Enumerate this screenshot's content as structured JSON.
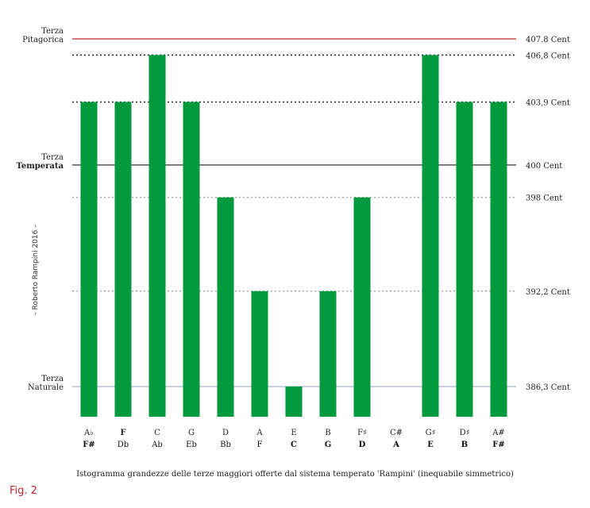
{
  "chart_data": {
    "type": "bar",
    "title": "",
    "xlabel": "",
    "ylabel": "",
    "ylim": [
      384,
      408.8
    ],
    "bar_color": "#009a3e",
    "top_tick_labels": [
      "A♭",
      "F",
      "C",
      "G",
      "D",
      "A",
      "E",
      "B",
      "F♯",
      "C#",
      "G♯",
      "D♯",
      "A#"
    ],
    "bottom_tick_labels": [
      "F#",
      "Db",
      "Ab",
      "Eb",
      "Bb",
      "F",
      "C",
      "G",
      "D",
      "A",
      "E",
      "B",
      "F#"
    ],
    "bold_top": [
      false,
      true,
      false,
      false,
      false,
      false,
      false,
      false,
      false,
      false,
      false,
      false,
      false
    ],
    "bold_bottom": [
      true,
      false,
      false,
      false,
      false,
      false,
      true,
      true,
      true,
      true,
      true,
      true,
      true
    ],
    "values": [
      403.9,
      403.9,
      406.8,
      403.9,
      398,
      392.2,
      386.3,
      392.2,
      398,
      384.1,
      406.8,
      403.9,
      403.9
    ],
    "reference_lines": [
      {
        "value": 407.8,
        "label": "407.8 Cent",
        "style": "solid",
        "color": "#c0262c",
        "left_label": [
          "Terza",
          "Pitagorica"
        ],
        "bold": false
      },
      {
        "value": 406.8,
        "label": "406,8 Cent",
        "style": "dotted",
        "color": "#222222",
        "left_label": [],
        "bold": false
      },
      {
        "value": 403.9,
        "label": "403,9 Cent",
        "style": "dotted",
        "color": "#222222",
        "left_label": [],
        "bold": false
      },
      {
        "value": 400,
        "label": "400 Cent",
        "style": "solid",
        "color": "#333333",
        "left_label": [
          "Terza",
          "Temperata"
        ],
        "bold": true
      },
      {
        "value": 398,
        "label": "398 Cent",
        "style": "dotted",
        "color": "#aaaaaa",
        "left_label": [],
        "bold": false
      },
      {
        "value": 392.2,
        "label": "392,2 Cent",
        "style": "dotted",
        "color": "#aaaaaa",
        "left_label": [],
        "bold": false
      },
      {
        "value": 386.3,
        "label": "386,3 Cent",
        "style": "solid",
        "color": "#a9b4c8",
        "left_label": [
          "Terza",
          "Naturale"
        ],
        "bold": false
      }
    ]
  },
  "caption": "Istogramma grandezze delle terze maggiori offerte dal sistema temperato 'Rampini' (inequabile simmetrico)",
  "side_note": "- Roberto Rampini 2016 -",
  "fig_label": "Fig. 2"
}
